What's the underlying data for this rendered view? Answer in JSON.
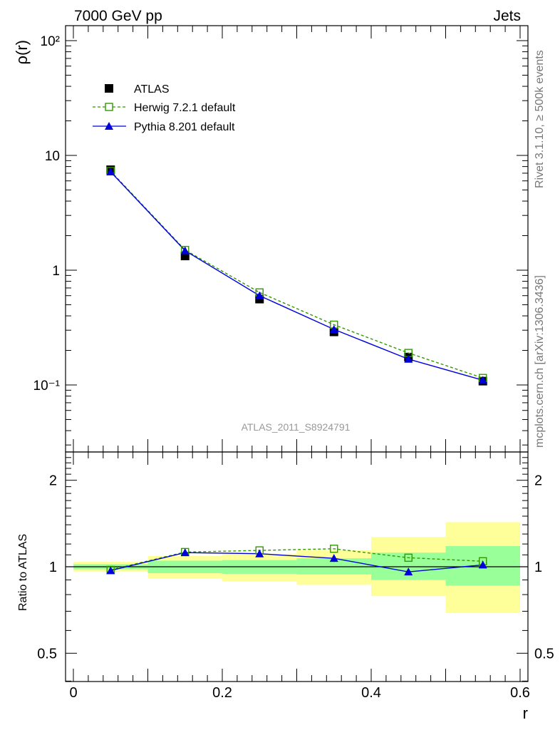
{
  "header": {
    "left": "7000 GeV pp",
    "right": "Jets"
  },
  "side_labels": {
    "rivet": "Rivet 3.1.10, ≥ 500k events",
    "mcplots": "mcplots.cern.ch [arXiv:1306.3436]"
  },
  "analysis_id": "ATLAS_2011_S8924791",
  "colors": {
    "data": "#000000",
    "herwig": "#339900",
    "pythia": "#0000dd",
    "band_inner": "#99ff99",
    "band_outer": "#ffff99"
  },
  "chart_data": [
    {
      "panel": "main",
      "type": "scatter",
      "xlabel": "r",
      "ylabel": "ρ(r)",
      "yscale": "log",
      "xlim": [
        0,
        0.6
      ],
      "ylim": [
        0.03,
        130
      ],
      "y_tick_labels": [
        "10⁻¹",
        "1",
        "10",
        "10²"
      ],
      "legend_position": "top-left",
      "series": [
        {
          "name": "ATLAS",
          "marker": "filled-square",
          "x": [
            0.05,
            0.15,
            0.25,
            0.35,
            0.45,
            0.55
          ],
          "values": [
            7.5,
            1.33,
            0.56,
            0.29,
            0.175,
            0.108
          ]
        },
        {
          "name": "Herwig 7.2.1 default",
          "marker": "open-square",
          "line": "dashed",
          "x": [
            0.05,
            0.15,
            0.25,
            0.35,
            0.45,
            0.55
          ],
          "values": [
            7.3,
            1.5,
            0.64,
            0.335,
            0.19,
            0.115
          ]
        },
        {
          "name": "Pythia 8.201 default",
          "marker": "filled-triangle",
          "line": "solid",
          "x": [
            0.05,
            0.15,
            0.25,
            0.35,
            0.45,
            0.55
          ],
          "values": [
            7.2,
            1.48,
            0.6,
            0.305,
            0.168,
            0.11
          ]
        }
      ]
    },
    {
      "panel": "ratio",
      "type": "line",
      "xlabel": "r",
      "ylabel": "Ratio to ATLAS",
      "xlim": [
        0,
        0.6
      ],
      "ylim": [
        0.34,
        2.4
      ],
      "x_tick_labels": [
        "0",
        "0.2",
        "0.4",
        "0.6"
      ],
      "y_tick_labels": [
        "0.5",
        "1",
        "2"
      ],
      "bands": [
        {
          "x": [
            0.0,
            0.1
          ],
          "inner": [
            0.98,
            1.02
          ],
          "outer": [
            0.96,
            1.04
          ]
        },
        {
          "x": [
            0.1,
            0.2
          ],
          "inner": [
            0.95,
            1.05
          ],
          "outer": [
            0.91,
            1.09
          ]
        },
        {
          "x": [
            0.2,
            0.3
          ],
          "inner": [
            0.945,
            1.055
          ],
          "outer": [
            0.89,
            1.11
          ]
        },
        {
          "x": [
            0.3,
            0.4
          ],
          "inner": [
            0.94,
            1.07
          ],
          "outer": [
            0.865,
            1.14
          ]
        },
        {
          "x": [
            0.4,
            0.5
          ],
          "inner": [
            0.9,
            1.12
          ],
          "outer": [
            0.79,
            1.27
          ]
        },
        {
          "x": [
            0.5,
            0.6
          ],
          "inner": [
            0.86,
            1.18
          ],
          "outer": [
            0.69,
            1.43
          ]
        }
      ],
      "series": [
        {
          "name": "Herwig 7.2.1 default",
          "x": [
            0.05,
            0.15,
            0.25,
            0.35,
            0.45,
            0.55
          ],
          "values": [
            0.975,
            1.125,
            1.14,
            1.155,
            1.075,
            1.045
          ]
        },
        {
          "name": "Pythia 8.201 default",
          "x": [
            0.05,
            0.15,
            0.25,
            0.35,
            0.45,
            0.55
          ],
          "values": [
            0.97,
            1.12,
            1.11,
            1.07,
            0.96,
            1.015
          ],
          "errors": [
            0.01,
            0.02,
            0.03,
            0.03,
            0.025,
            0.02
          ]
        }
      ]
    }
  ]
}
